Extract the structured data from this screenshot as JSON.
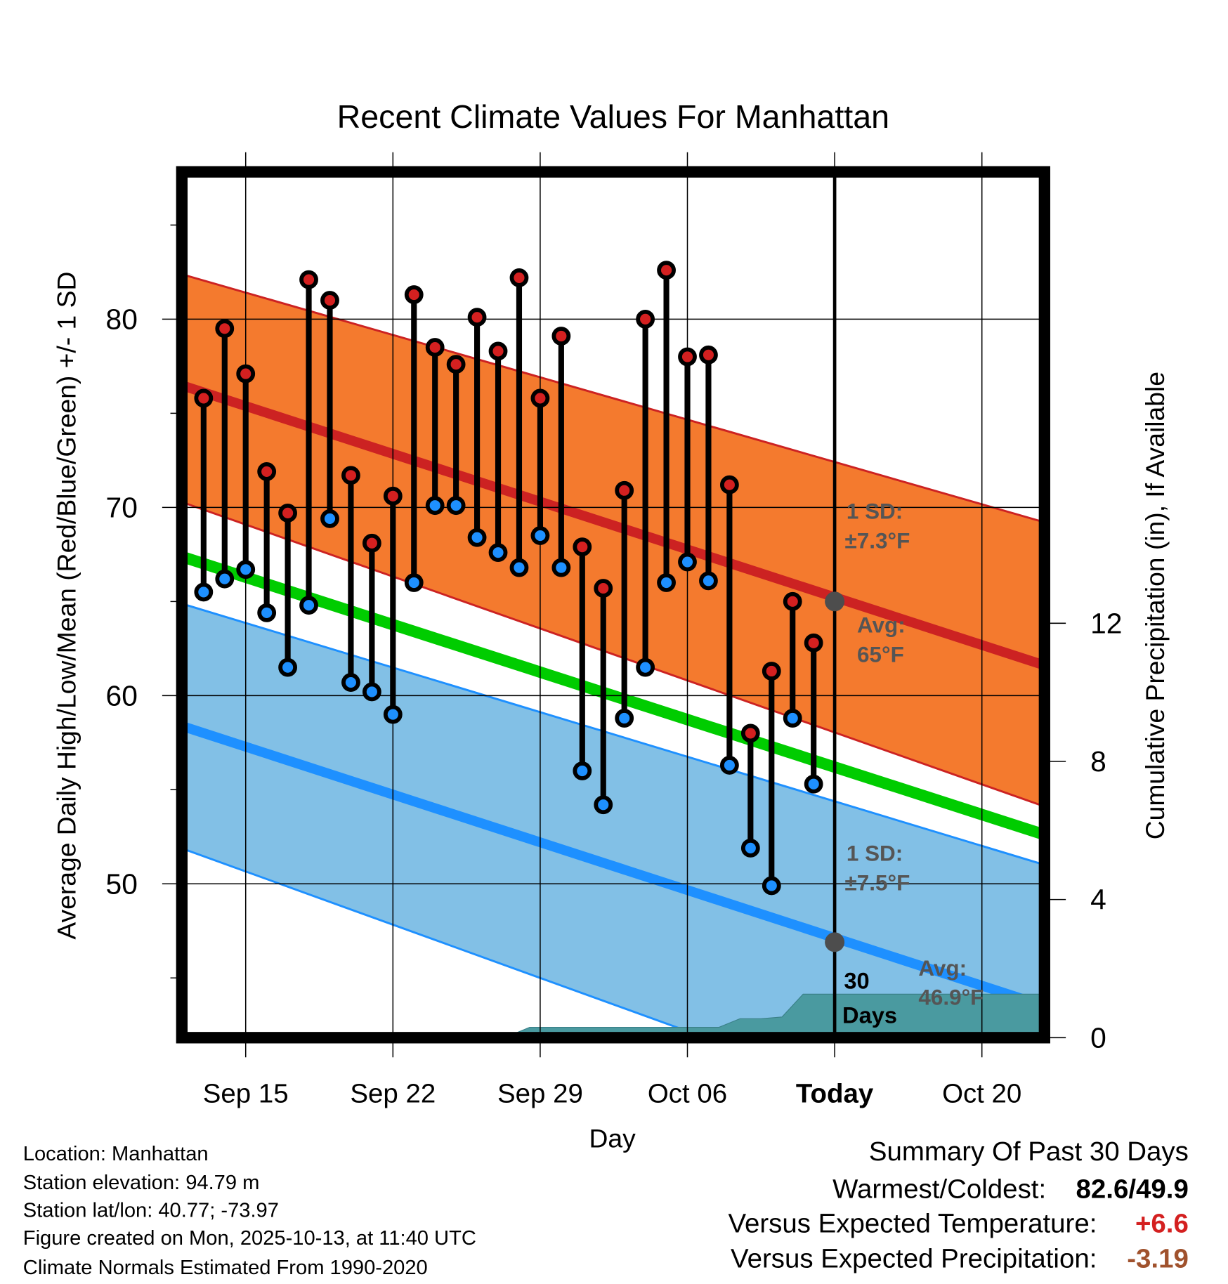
{
  "chart_data": {
    "type": "line",
    "title": "Recent Climate Values For Manhattan",
    "xlabel": "Day",
    "ylabel": "Average Daily High/Low/Mean (Red/Blue/Green) +/- 1 SD",
    "y2label": "Cumulative Precipitation (in), If Available",
    "ylim": [
      41.8,
      87.8
    ],
    "y2lim": [
      0,
      25.07
    ],
    "x_start_date": "Sep 12",
    "x_end_day_index": 41,
    "x_ticks": [
      {
        "day": 3,
        "label": "Sep 15"
      },
      {
        "day": 10,
        "label": "Sep 22"
      },
      {
        "day": 17,
        "label": "Sep 29"
      },
      {
        "day": 24,
        "label": "Oct 06"
      },
      {
        "day": 31,
        "label": "Today"
      },
      {
        "day": 38,
        "label": "Oct 20"
      }
    ],
    "y_ticks": [
      50,
      60,
      70,
      80
    ],
    "y_minor_ticks": [
      45,
      55,
      65,
      75,
      85
    ],
    "y2_ticks": [
      0,
      4,
      8,
      12
    ],
    "grid": true,
    "days": [
      "Sep 13",
      "Sep 14",
      "Sep 15",
      "Sep 16",
      "Sep 17",
      "Sep 18",
      "Sep 19",
      "Sep 20",
      "Sep 21",
      "Sep 22",
      "Sep 23",
      "Sep 24",
      "Sep 25",
      "Sep 26",
      "Sep 27",
      "Sep 28",
      "Sep 29",
      "Sep 30",
      "Oct 01",
      "Oct 02",
      "Oct 03",
      "Oct 04",
      "Oct 05",
      "Oct 06",
      "Oct 07",
      "Oct 08",
      "Oct 09",
      "Oct 10",
      "Oct 11",
      "Oct 12"
    ],
    "series": [
      {
        "name": "Daily High",
        "color": "#d42020",
        "values": [
          75.8,
          79.5,
          77.1,
          71.9,
          69.7,
          82.1,
          81.0,
          71.7,
          68.1,
          70.6,
          81.3,
          78.5,
          77.6,
          80.1,
          78.3,
          82.2,
          75.8,
          79.1,
          67.9,
          65.7,
          70.9,
          80.0,
          82.6,
          78.0,
          78.1,
          71.2,
          58.0,
          61.3,
          65.0,
          62.8
        ]
      },
      {
        "name": "Daily Low",
        "color": "#1e90ff",
        "values": [
          65.5,
          66.2,
          66.7,
          64.4,
          61.5,
          64.8,
          69.4,
          60.7,
          60.2,
          59.0,
          66.0,
          70.1,
          70.1,
          68.4,
          67.6,
          66.8,
          68.5,
          66.8,
          56.0,
          54.2,
          58.8,
          61.5,
          66.0,
          67.1,
          66.1,
          56.3,
          51.9,
          49.9,
          58.8,
          55.3
        ]
      },
      {
        "name": "Cumulative Precipitation",
        "color": "#4a9aa0",
        "values": [
          0,
          0,
          0,
          0,
          0,
          0,
          0,
          0,
          0,
          0,
          0,
          0,
          0.02,
          0.03,
          0.05,
          0.3,
          0.3,
          0.3,
          0.3,
          0.3,
          0.3,
          0.3,
          0.3,
          0.3,
          0.3,
          0.55,
          0.55,
          0.6,
          1.26,
          1.26
        ]
      }
    ],
    "normals": {
      "high_avg": {
        "start": 76.5,
        "end": 61.6,
        "color": "#cc2222"
      },
      "high_upper_sd": {
        "start": 82.4,
        "end": 69.2
      },
      "high_lower_sd": {
        "start": 70.3,
        "end": 54.1
      },
      "high_band_color": "#f47a2e",
      "mean": {
        "start": 67.4,
        "end": 52.6,
        "color": "#00cc00"
      },
      "low_upper_sd": {
        "start": 64.9,
        "end": 51.0
      },
      "low_avg": {
        "start": 58.4,
        "end": 43.5,
        "color": "#1e90ff"
      },
      "low_lower_sd": {
        "start": 51.9,
        "end": 35.3
      },
      "low_band_color": "#82c0e6"
    },
    "annotations": {
      "high_sd_l1": "1 SD:",
      "high_sd_l2": "±7.3°F",
      "high_avg_l1": "Avg:",
      "high_avg_l2": "65°F",
      "low_sd_l1": "1 SD:",
      "low_sd_l2": "±7.5°F",
      "low_avg_l1": "Avg:",
      "low_avg_l2": "46.9°F",
      "days_l1": "30",
      "days_l2": "Days",
      "today_high_avg": 65,
      "today_low_avg": 46.9
    }
  },
  "footer": {
    "location": "Location: Manhattan",
    "elevation": "Station elevation: 94.79 m",
    "latlon": "Station lat/lon: 40.77; -73.97",
    "created": "Figure created on Mon, 2025-10-13, at 11:40 UTC",
    "normals": "Climate Normals Estimated From 1990-2020"
  },
  "summary": {
    "title": "Summary Of Past 30 Days",
    "warm_cold_label": "Warmest/Coldest:",
    "warm_cold_value": "82.6/49.9",
    "temp_label": "Versus Expected Temperature:",
    "temp_value": "+6.6",
    "temp_color": "#d42020",
    "precip_label": "Versus Expected Precipitation:",
    "precip_value": "-3.19",
    "precip_color": "#a0522d"
  }
}
